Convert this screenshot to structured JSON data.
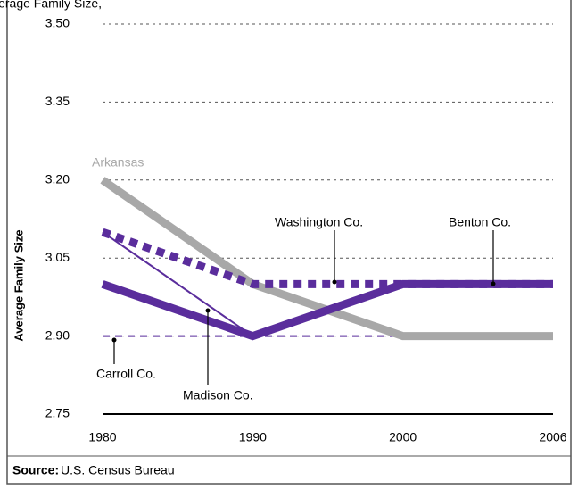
{
  "chart_data": {
    "type": "line",
    "title": "Average Family Size,",
    "y_label": "Average Family Size",
    "source_label": "Source:",
    "source": "U.S. Census Bureau",
    "categories": [
      "1980",
      "1990",
      "2000",
      "2006"
    ],
    "series": [
      {
        "name": "Carroll Co.",
        "color": "#5a2d9c",
        "dash": "dashed",
        "weight": "thin",
        "values": [
          2.9,
          2.9,
          2.9,
          2.9
        ]
      },
      {
        "name": "Arkansas",
        "color": "#a8a8a8",
        "dash": "solid",
        "weight": "thick",
        "values": [
          3.2,
          3.0,
          2.9,
          2.9
        ]
      },
      {
        "name": "Washington Co.",
        "color": "#5a2d9c",
        "dash": "dotted",
        "weight": "thick",
        "values": [
          3.1,
          3.0,
          3.0,
          3.0
        ]
      },
      {
        "name": "Benton Co.",
        "color": "#5a2d9c",
        "dash": "solid",
        "weight": "thick",
        "values": [
          3.0,
          2.9,
          3.0,
          3.0
        ]
      },
      {
        "name": "Madison Co.",
        "color": "#5a2d9c",
        "dash": "solid",
        "weight": "thin",
        "values": [
          3.1,
          2.9,
          null,
          null
        ]
      }
    ],
    "ylim": [
      2.75,
      3.5
    ],
    "yticks": [
      {
        "value": 2.75,
        "label": "2.75"
      },
      {
        "value": 2.9,
        "label": "2.90"
      },
      {
        "value": 3.05,
        "label": "3.05"
      },
      {
        "value": 3.2,
        "label": "3.20"
      },
      {
        "value": 3.35,
        "label": "3.35"
      },
      {
        "value": 3.5,
        "label": "3.50"
      }
    ],
    "grid": true
  }
}
